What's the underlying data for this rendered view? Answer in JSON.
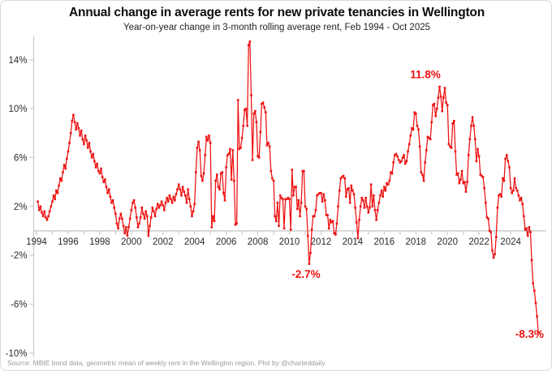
{
  "header": {
    "title": "Annual change in average rents for new private tenancies in Wellington",
    "subtitle": "Year-on-year change in 3-month rolling average rent, Feb 1994 - Oct 2025"
  },
  "source_note": "Source: MBIE bond data, geometric mean of weekly rent in the Wellington region. Plot by @charteddaily",
  "colors": {
    "line": "#ee1111",
    "annotation": "#ee1111",
    "axis_line": "#cccccc",
    "tick_text": "#2b2b2b",
    "muted_text": "#9a9a9a"
  },
  "chart_data": {
    "type": "line",
    "title": "Annual change in average rents for new private tenancies in Wellington",
    "series_name": "Year-on-year % change in 3-month rolling average rent",
    "frequency": "monthly",
    "start": {
      "year": 1994,
      "month": 2
    },
    "end": {
      "year": 2025,
      "month": 10
    },
    "ylim": [
      -10.5,
      16
    ],
    "xlim": [
      1993.6,
      2026.3
    ],
    "grid": false,
    "legend": "none",
    "yticks": [
      14,
      10,
      6,
      2,
      -2,
      -6,
      -10
    ],
    "ytick_labels": [
      "14%",
      "10%",
      "6%",
      "2%",
      "-2%",
      "-6%",
      "-10%"
    ],
    "xtick_years": [
      1994,
      1995,
      1996,
      1997,
      1998,
      1999,
      2000,
      2001,
      2002,
      2003,
      2004,
      2005,
      2006,
      2007,
      2008,
      2009,
      2010,
      2011,
      2012,
      2013,
      2014,
      2015,
      2016,
      2017,
      2018,
      2019,
      2020,
      2021,
      2022,
      2023,
      2024,
      2025
    ],
    "xtick_labeled_years": [
      1994,
      1996,
      1998,
      2000,
      2002,
      2004,
      2006,
      2008,
      2010,
      2012,
      2014,
      2016,
      2018,
      2020,
      2022,
      2024
    ],
    "annotations": [
      {
        "text": "11.8%",
        "x": 2018.6,
        "y": 12.8,
        "anchor": "middle"
      },
      {
        "text": "-2.7%",
        "x": 2011.05,
        "y": -3.55,
        "anchor": "middle"
      },
      {
        "text": "-8.3%",
        "x": 2026.1,
        "y": -8.45,
        "anchor": "end"
      }
    ],
    "values": [
      2.4,
      1.7,
      2.0,
      1.5,
      1.2,
      1.6,
      1.1,
      0.9,
      1.2,
      1.6,
      2.0,
      2.4,
      2.9,
      2.6,
      3.3,
      3.1,
      3.7,
      4.3,
      4.1,
      4.8,
      5.4,
      5.1,
      5.9,
      6.5,
      7.2,
      8.0,
      9.0,
      9.5,
      8.9,
      8.3,
      8.8,
      8.4,
      7.8,
      8.2,
      7.5,
      7.1,
      7.8,
      7.4,
      6.8,
      7.2,
      6.5,
      6.0,
      6.3,
      5.7,
      5.2,
      5.5,
      4.9,
      4.7,
      5.1,
      4.4,
      4.0,
      4.2,
      3.6,
      3.1,
      3.4,
      2.8,
      2.3,
      2.5,
      1.9,
      1.4,
      0.6,
      0.2,
      1.0,
      1.4,
      1.0,
      0.4,
      -0.2,
      0.3,
      -0.4,
      0.3,
      1.0,
      1.7,
      2.3,
      2.5,
      1.9,
      1.1,
      0.3,
      0.6,
      1.1,
      1.9,
      1.4,
      1.0,
      1.6,
      1.2,
      -0.4,
      0.4,
      1.1,
      1.9,
      1.6,
      1.2,
      1.8,
      2.2,
      1.9,
      2.1,
      2.4,
      2.1,
      1.7,
      2.3,
      2.7,
      2.4,
      2.9,
      2.6,
      2.3,
      2.8,
      2.5,
      3.0,
      3.4,
      3.8,
      3.4,
      2.9,
      3.6,
      3.2,
      2.9,
      2.3,
      3.4,
      2.6,
      2.0,
      1.2,
      1.6,
      2.2,
      4.8,
      6.8,
      7.3,
      6.6,
      4.5,
      4.1,
      4.7,
      6.2,
      7.7,
      7.4,
      7.8,
      7.2,
      0.3,
      1.2,
      0.8,
      4.1,
      4.6,
      3.6,
      3.4,
      4.7,
      4.8,
      3.1,
      2.5,
      5.2,
      6.2,
      6.3,
      6.7,
      4.2,
      6.6,
      4.1,
      0.5,
      0.6,
      10.7,
      6.7,
      6.8,
      7.6,
      8.6,
      9.9,
      10.0,
      8.6,
      15.2,
      15.5,
      11.1,
      5.8,
      9.6,
      9.8,
      8.9,
      6.1,
      6.0,
      8.1,
      10.4,
      10.5,
      10.1,
      9.7,
      7.0,
      7.2,
      6.9,
      4.9,
      4.3,
      4.1,
      1.2,
      0.8,
      2.3,
      0.4,
      2.9,
      2.7,
      2.6,
      0.2,
      2.6,
      2.6,
      2.7,
      2.6,
      0.1,
      5.0,
      2.9,
      3.6,
      3.6,
      1.8,
      2.5,
      1.2,
      2.3,
      4.9,
      4.9,
      2.0,
      1.8,
      -0.4,
      -2.7,
      -1.8,
      0.1,
      1.2,
      1.2,
      1.7,
      2.9,
      3.0,
      3.1,
      3.1,
      2.4,
      3.0,
      2.5,
      1.3,
      1.3,
      0.2,
      0.9,
      0.7,
      0.8,
      -0.2,
      -0.3,
      0.6,
      2.0,
      3.3,
      4.3,
      4.4,
      4.5,
      4.3,
      2.8,
      3.4,
      3.5,
      2.3,
      3.7,
      3.3,
      3.0,
      1.9,
      0.7,
      -0.6,
      0.9,
      2.0,
      2.7,
      2.5,
      1.9,
      2.7,
      2.0,
      1.5,
      1.9,
      3.8,
      2.0,
      2.9,
      1.7,
      0.9,
      1.7,
      2.3,
      2.9,
      3.3,
      2.8,
      3.6,
      3.3,
      3.9,
      3.8,
      4.1,
      4.8,
      4.7,
      5.6,
      6.2,
      6.3,
      6.1,
      5.8,
      5.6,
      5.7,
      6.0,
      6.2,
      5.5,
      5.7,
      6.5,
      7.1,
      7.8,
      8.4,
      8.3,
      9.7,
      9.6,
      8.6,
      8.3,
      6.9,
      4.8,
      4.6,
      4.1,
      5.6,
      6.6,
      7.7,
      7.6,
      7.5,
      8.9,
      10.3,
      10.4,
      9.4,
      10.0,
      10.9,
      11.8,
      11.0,
      9.8,
      10.9,
      11.7,
      10.5,
      10.3,
      7.1,
      6.9,
      6.8,
      8.8,
      9.0,
      6.5,
      4.6,
      4.7,
      3.9,
      4.2,
      4.9,
      3.9,
      4.0,
      3.2,
      4.0,
      6.2,
      7.5,
      8.6,
      9.3,
      8.6,
      7.5,
      5.7,
      6.7,
      6.1,
      4.6,
      4.5,
      4.4,
      3.5,
      2.3,
      1.1,
      1.0,
      0.0,
      -0.1,
      -1.6,
      -2.2,
      -1.9,
      -0.5,
      1.9,
      2.9,
      3.0,
      2.8,
      4.3,
      4.1,
      5.9,
      6.2,
      5.7,
      5.2,
      3.5,
      3.1,
      3.3,
      4.3,
      3.5,
      3.3,
      2.9,
      2.5,
      2.7,
      2.2,
      1.2,
      0.1,
      0.2,
      -0.4,
      0.3,
      -0.1,
      -2.4,
      -4.3,
      -4.9,
      -5.9,
      -7.0,
      -8.3
    ]
  }
}
